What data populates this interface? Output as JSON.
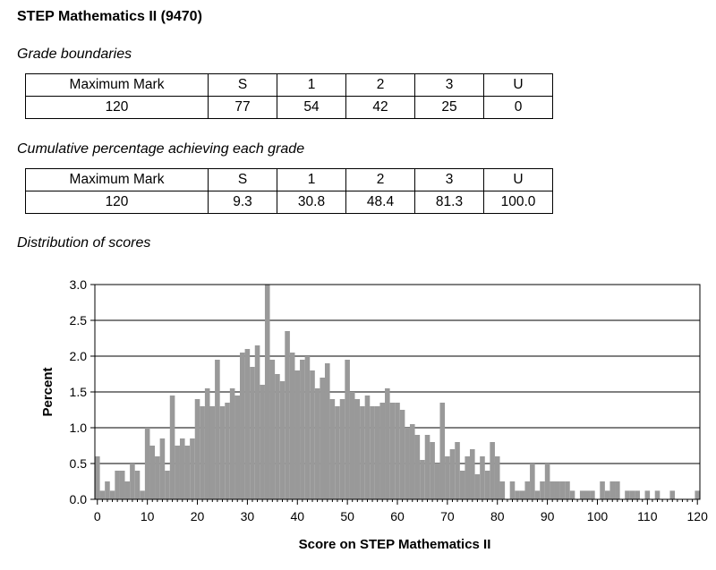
{
  "title": "STEP Mathematics II (9470)",
  "grade_boundaries": {
    "heading": "Grade boundaries",
    "header": [
      "Maximum Mark",
      "S",
      "1",
      "2",
      "3",
      "U"
    ],
    "row": [
      "120",
      "77",
      "54",
      "42",
      "25",
      "0"
    ]
  },
  "cumulative": {
    "heading": "Cumulative percentage achieving each grade",
    "header": [
      "Maximum Mark",
      "S",
      "1",
      "2",
      "3",
      "U"
    ],
    "row": [
      "120",
      "9.3",
      "30.8",
      "48.4",
      "81.3",
      "100.0"
    ]
  },
  "distribution_heading": "Distribution of scores",
  "chart_data": {
    "type": "bar",
    "xlabel": "Score on STEP Mathematics II",
    "ylabel": "Percent",
    "xlim": [
      0,
      121
    ],
    "ylim": [
      0,
      3.0
    ],
    "x_ticks": [
      "0",
      "10",
      "20",
      "30",
      "40",
      "50",
      "60",
      "70",
      "80",
      "90",
      "100",
      "110",
      "120"
    ],
    "y_ticks": [
      "0.0",
      "0.5",
      "1.0",
      "1.5",
      "2.0",
      "2.5",
      "3.0"
    ],
    "grid": true,
    "bar_color": "#999999",
    "x": [
      0,
      1,
      2,
      3,
      4,
      5,
      6,
      7,
      8,
      9,
      10,
      11,
      12,
      13,
      14,
      15,
      16,
      17,
      18,
      19,
      20,
      21,
      22,
      23,
      24,
      25,
      26,
      27,
      28,
      29,
      30,
      31,
      32,
      33,
      34,
      35,
      36,
      37,
      38,
      39,
      40,
      41,
      42,
      43,
      44,
      45,
      46,
      47,
      48,
      49,
      50,
      51,
      52,
      53,
      54,
      55,
      56,
      57,
      58,
      59,
      60,
      61,
      62,
      63,
      64,
      65,
      66,
      67,
      68,
      69,
      70,
      71,
      72,
      73,
      74,
      75,
      76,
      77,
      78,
      79,
      80,
      81,
      82,
      83,
      84,
      85,
      86,
      87,
      88,
      89,
      90,
      91,
      92,
      93,
      94,
      95,
      96,
      97,
      98,
      99,
      100,
      101,
      102,
      103,
      104,
      105,
      106,
      107,
      108,
      109,
      110,
      111,
      112,
      113,
      114,
      115,
      116,
      117,
      118,
      119,
      120
    ],
    "values": [
      0.6,
      0.12,
      0.25,
      0.12,
      0.4,
      0.4,
      0.25,
      0.5,
      0.4,
      0.12,
      1.0,
      0.75,
      0.6,
      0.85,
      0.4,
      1.45,
      0.75,
      0.85,
      0.75,
      0.85,
      1.4,
      1.3,
      1.55,
      1.3,
      1.95,
      1.3,
      1.35,
      1.55,
      1.45,
      2.05,
      2.1,
      1.85,
      2.15,
      1.6,
      3.0,
      1.95,
      1.75,
      1.65,
      2.35,
      2.05,
      1.8,
      1.95,
      2.0,
      1.8,
      1.55,
      1.7,
      1.9,
      1.4,
      1.3,
      1.4,
      1.95,
      1.5,
      1.4,
      1.3,
      1.45,
      1.3,
      1.3,
      1.35,
      1.55,
      1.35,
      1.35,
      1.25,
      1.0,
      1.05,
      0.9,
      0.55,
      0.9,
      0.8,
      0.5,
      1.35,
      0.6,
      0.7,
      0.8,
      0.4,
      0.6,
      0.7,
      0.35,
      0.6,
      0.4,
      0.8,
      0.6,
      0.25,
      0.0,
      0.25,
      0.12,
      0.12,
      0.25,
      0.5,
      0.12,
      0.25,
      0.5,
      0.25,
      0.25,
      0.25,
      0.25,
      0.12,
      0.0,
      0.12,
      0.12,
      0.12,
      0.0,
      0.25,
      0.12,
      0.25,
      0.25,
      0.0,
      0.12,
      0.12,
      0.12,
      0.0,
      0.12,
      0.0,
      0.12,
      0.0,
      0.0,
      0.12,
      0.0,
      0.0,
      0.0,
      0.0,
      0.12
    ]
  }
}
